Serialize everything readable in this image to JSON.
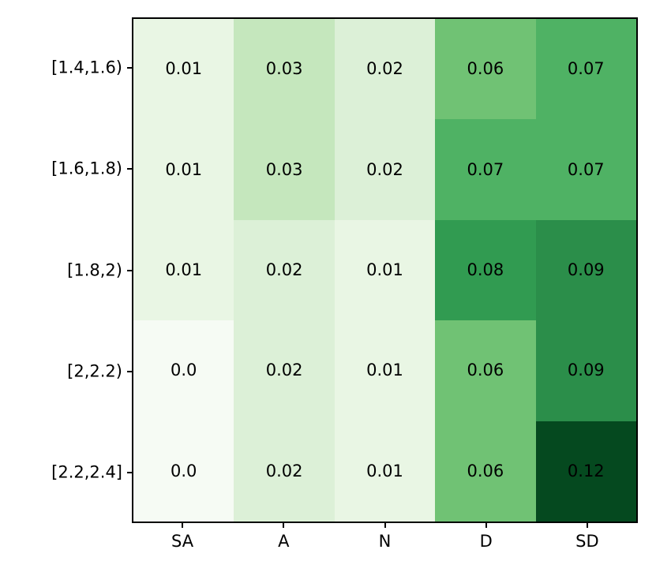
{
  "chart_data": {
    "type": "heatmap",
    "title": "",
    "xlabel": "",
    "ylabel": "",
    "x_categories": [
      "SA",
      "A",
      "N",
      "D",
      "SD"
    ],
    "y_categories": [
      "[1.4,1.6)",
      "[1.6,1.8)",
      "[1.8,2)",
      "[2,2.2)",
      "[2.2,2.4]"
    ],
    "values": [
      [
        0.01,
        0.03,
        0.02,
        0.06,
        0.07
      ],
      [
        0.01,
        0.03,
        0.02,
        0.07,
        0.07
      ],
      [
        0.01,
        0.02,
        0.01,
        0.08,
        0.09
      ],
      [
        0.0,
        0.02,
        0.01,
        0.06,
        0.09
      ],
      [
        0.0,
        0.02,
        0.01,
        0.06,
        0.12
      ]
    ],
    "labels": [
      [
        "0.01",
        "0.03",
        "0.02",
        "0.06",
        "0.07"
      ],
      [
        "0.01",
        "0.03",
        "0.02",
        "0.07",
        "0.07"
      ],
      [
        "0.01",
        "0.02",
        "0.01",
        "0.08",
        "0.09"
      ],
      [
        "0.0",
        "0.02",
        "0.01",
        "0.06",
        "0.09"
      ],
      [
        "0.0",
        "0.02",
        "0.01",
        "0.06",
        "0.12"
      ]
    ],
    "colormap": "Greens",
    "vmin": 0,
    "vmax": 0.12,
    "value_colors": {
      "0": "#f6fbf4",
      "0.01": "#e9f6e4",
      "0.02": "#dcf0d7",
      "0.03": "#c5e7bd",
      "0.06": "#70c274",
      "0.07": "#4fb264",
      "0.08": "#319b51",
      "0.09": "#2b8e4a",
      "0.12": "#05491f"
    },
    "annotation_color": "#000000",
    "frame_color": "#000000",
    "background_color": "#ffffff",
    "grid": false,
    "legend": false
  }
}
